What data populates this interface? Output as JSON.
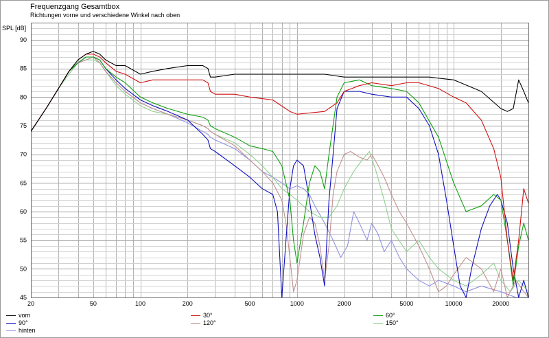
{
  "chart_data": {
    "type": "line",
    "title": "Frequenzgang Gesamtbox",
    "subtitle": "Richtungen vorne und verschiedene Winkel nach oben",
    "ylabel": "SPL [dB]",
    "xlabel": "",
    "xscale": "log",
    "xlim": [
      20,
      30000
    ],
    "ylim": [
      45,
      93
    ],
    "grid": true,
    "legend_position": "bottom",
    "y_ticks": [
      45,
      50,
      55,
      60,
      65,
      70,
      75,
      80,
      85,
      90
    ],
    "x_ticks": [
      20,
      50,
      100,
      200,
      500,
      1000,
      2000,
      5000,
      10000,
      20000
    ],
    "series": [
      {
        "name": "vorn",
        "color": "#000000",
        "x": [
          20,
          25,
          30,
          35,
          40,
          45,
          50,
          55,
          60,
          70,
          80,
          100,
          120,
          150,
          200,
          250,
          270,
          280,
          300,
          400,
          500,
          700,
          1000,
          1500,
          2000,
          3000,
          4000,
          5000,
          7000,
          10000,
          15000,
          20000,
          22000,
          24000,
          26000,
          28000,
          30000
        ],
        "y": [
          74,
          78,
          81.5,
          84.5,
          86.5,
          87.5,
          88,
          87.5,
          86.5,
          85.5,
          85.5,
          84,
          84.5,
          85,
          85.5,
          85.5,
          85,
          83.5,
          83.5,
          84,
          84,
          84,
          84,
          84,
          83.5,
          83.5,
          83.5,
          83.5,
          83.5,
          83,
          81,
          78,
          77.5,
          78,
          83,
          81,
          79
        ]
      },
      {
        "name": "30°",
        "color": "#d01010",
        "x": [
          20,
          25,
          30,
          35,
          40,
          45,
          50,
          55,
          60,
          70,
          80,
          100,
          120,
          150,
          200,
          250,
          270,
          280,
          300,
          400,
          500,
          700,
          900,
          1000,
          1500,
          1800,
          2000,
          2500,
          3000,
          4000,
          5000,
          6000,
          8000,
          10000,
          12000,
          15000,
          18000,
          20000,
          22000,
          24000,
          26000,
          28000,
          30000
        ],
        "y": [
          74,
          78,
          81.5,
          84.5,
          86.5,
          87.5,
          87.5,
          87,
          86,
          84.5,
          84,
          82.5,
          83,
          83,
          83,
          83,
          82.5,
          81,
          80.5,
          80.5,
          80,
          79.5,
          77.5,
          77,
          77.5,
          79,
          81,
          82,
          82.5,
          82,
          82.5,
          82.5,
          81.5,
          80,
          79,
          76,
          71,
          66,
          55,
          48,
          55,
          64,
          61.5
        ]
      },
      {
        "name": "60°",
        "color": "#10a010",
        "x": [
          20,
          25,
          30,
          35,
          40,
          45,
          50,
          55,
          60,
          70,
          80,
          100,
          120,
          150,
          200,
          250,
          270,
          280,
          300,
          400,
          500,
          600,
          700,
          800,
          900,
          950,
          1000,
          1100,
          1200,
          1300,
          1400,
          1500,
          1600,
          1800,
          2000,
          2500,
          3000,
          4000,
          5000,
          6000,
          8000,
          10000,
          12000,
          15000,
          18000,
          20000,
          22000,
          24000,
          26000,
          28000,
          30000
        ],
        "y": [
          74,
          78,
          81.5,
          84.5,
          86,
          87,
          87,
          86.5,
          85,
          83.5,
          82.5,
          80,
          79,
          78,
          77,
          76.5,
          76,
          75,
          74.5,
          73,
          71.5,
          71,
          70.5,
          68,
          62,
          55,
          51,
          58,
          65,
          68,
          67,
          64,
          70,
          80,
          82.5,
          83,
          82,
          81.5,
          81,
          79,
          73,
          65,
          60,
          61,
          63,
          62,
          55,
          47,
          54,
          58,
          55
        ]
      },
      {
        "name": "90°",
        "color": "#1010c0",
        "x": [
          20,
          25,
          30,
          35,
          40,
          45,
          50,
          55,
          60,
          70,
          80,
          100,
          120,
          150,
          200,
          250,
          270,
          280,
          300,
          400,
          500,
          600,
          700,
          750,
          800,
          850,
          900,
          950,
          1000,
          1100,
          1200,
          1300,
          1400,
          1500,
          1550,
          1600,
          1700,
          1800,
          2000,
          2500,
          3000,
          4000,
          5000,
          6000,
          7000,
          8000,
          9000,
          10000,
          11000,
          12000,
          13000,
          15000,
          17000,
          19000,
          20000,
          22000,
          24000,
          26000,
          28000,
          30000
        ],
        "y": [
          74,
          78,
          81.5,
          84.5,
          86,
          87,
          87,
          86.5,
          85,
          83,
          81.5,
          79.5,
          78.5,
          77.5,
          76,
          73.5,
          72.5,
          71,
          70.5,
          68,
          66,
          64,
          63,
          60,
          45,
          55,
          64,
          68,
          69,
          68,
          62,
          56,
          52,
          47,
          55,
          62,
          70,
          78,
          81,
          81,
          80.5,
          80,
          80,
          78,
          75,
          70,
          62,
          54,
          47,
          45,
          50,
          57,
          61,
          63,
          62,
          58,
          50,
          45,
          48,
          45
        ]
      },
      {
        "name": "120°",
        "color": "#c09090",
        "x": [
          20,
          25,
          30,
          35,
          40,
          45,
          50,
          55,
          60,
          70,
          80,
          100,
          120,
          150,
          200,
          250,
          270,
          280,
          300,
          400,
          500,
          600,
          700,
          800,
          850,
          900,
          950,
          1000,
          1100,
          1200,
          1300,
          1400,
          1500,
          1600,
          1700,
          1800,
          2000,
          2200,
          2500,
          2800,
          3000,
          3300,
          3600,
          4000,
          4500,
          5000,
          6000,
          7000,
          8000,
          9000,
          10000,
          12000,
          15000,
          18000,
          20000,
          22000,
          25000,
          28000,
          30000
        ],
        "y": [
          74,
          78,
          81.5,
          84.5,
          86,
          86.5,
          87,
          86,
          84.5,
          82.5,
          81,
          79,
          78,
          77,
          76,
          75,
          74.5,
          74,
          73.5,
          71.5,
          69,
          67,
          65,
          62,
          58,
          52,
          46,
          48,
          56,
          59,
          58,
          54,
          48,
          54,
          63,
          67,
          70,
          70.5,
          69.5,
          69,
          70,
          68,
          66,
          63,
          60,
          58,
          54,
          50,
          46,
          47,
          49,
          52,
          50,
          46,
          50,
          45,
          48,
          46,
          45
        ]
      },
      {
        "name": "150°",
        "color": "#90d090",
        "x": [
          20,
          25,
          30,
          35,
          40,
          45,
          50,
          55,
          60,
          70,
          80,
          100,
          120,
          150,
          200,
          250,
          270,
          280,
          300,
          400,
          500,
          600,
          700,
          800,
          900,
          1000,
          1200,
          1400,
          1600,
          1800,
          2000,
          2300,
          2600,
          2900,
          3200,
          3600,
          4000,
          5000,
          6000,
          7000,
          8000,
          10000,
          12000,
          15000,
          18000,
          20000,
          23000,
          26000,
          30000
        ],
        "y": [
          74,
          78,
          81.5,
          84,
          86,
          86.5,
          86.5,
          86,
          84.5,
          82,
          80.5,
          78.5,
          77.5,
          77,
          76,
          75,
          74.5,
          74,
          73.5,
          72,
          70,
          68,
          66,
          64,
          63,
          62,
          60,
          59,
          59,
          61,
          64,
          67,
          69,
          70.5,
          67,
          62,
          57,
          53,
          55,
          52,
          50,
          48,
          47,
          49,
          51,
          48,
          46,
          48,
          46
        ]
      },
      {
        "name": "hinten",
        "color": "#9090e0",
        "x": [
          20,
          25,
          30,
          35,
          40,
          45,
          50,
          55,
          60,
          70,
          80,
          100,
          120,
          150,
          200,
          250,
          270,
          280,
          300,
          400,
          500,
          600,
          700,
          800,
          900,
          1000,
          1100,
          1200,
          1300,
          1500,
          1700,
          1900,
          2100,
          2300,
          2500,
          2800,
          3000,
          3300,
          3600,
          4000,
          4500,
          5000,
          6000,
          7000,
          8000,
          10000,
          12000,
          15000,
          20000,
          25000,
          30000
        ],
        "y": [
          74,
          78,
          81.5,
          84.5,
          86,
          86.5,
          87,
          86,
          84.5,
          82.5,
          81,
          79,
          78,
          77,
          75.5,
          74,
          73.5,
          73,
          72.5,
          71,
          69,
          67,
          66,
          65,
          64,
          64.5,
          64,
          63,
          61,
          58,
          55,
          52,
          54,
          60,
          58,
          55,
          58,
          56,
          53,
          55,
          52,
          50,
          48,
          47,
          48,
          47,
          46,
          47,
          46,
          45,
          45
        ]
      }
    ]
  }
}
